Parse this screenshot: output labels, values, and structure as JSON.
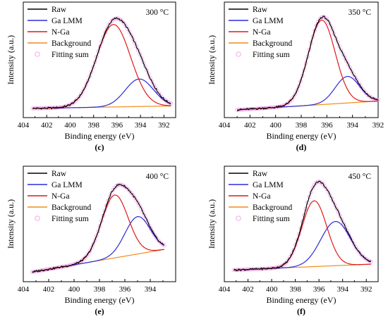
{
  "legend_items": [
    "Raw",
    "Ga LMM",
    "N-Ga",
    "Background",
    "Fitting sum"
  ],
  "series_colors": {
    "Raw": "#000000",
    "Ga LMM": "#2b2bdc",
    "N-Ga": "#e01818",
    "Background": "#f28c1a",
    "Fitting sum": "#f0a0e6"
  },
  "chart_data": [
    {
      "type": "line",
      "temperature": "300 °C",
      "panel": "(c)",
      "xlabel": "Binding energy (eV)",
      "ylabel": "Intensity (a.u.)",
      "xlim": [
        404,
        391
      ],
      "x_reversed": true,
      "ylim": [
        0,
        1
      ],
      "xticks": [
        404,
        402,
        400,
        398,
        396,
        394,
        392
      ],
      "legend": [
        "Raw",
        "Ga LMM",
        "N-Ga",
        "Background",
        "Fitting sum"
      ],
      "legend_position": "top-left",
      "x_start": 403.2,
      "x_end": 391.4,
      "background": [
        0.035,
        0.06
      ],
      "peaks": [
        {
          "name": "N-Ga",
          "center": 396.3,
          "height": 0.84,
          "width": 1.45
        },
        {
          "name": "Ga LMM",
          "center": 394.1,
          "height": 0.28,
          "width": 1.2
        }
      ],
      "series": [
        {
          "name": "Raw"
        },
        {
          "name": "Ga LMM"
        },
        {
          "name": "N-Ga"
        },
        {
          "name": "Background"
        },
        {
          "name": "Fitting sum"
        }
      ]
    },
    {
      "type": "line",
      "temperature": "350 °C",
      "panel": "(d)",
      "xlabel": "Binding energy (eV)",
      "ylabel": "Intensity (a.u.)",
      "xlim": [
        404,
        392
      ],
      "x_reversed": true,
      "ylim": [
        0,
        1
      ],
      "xticks": [
        404,
        402,
        400,
        398,
        396,
        394,
        392
      ],
      "legend": [
        "Raw",
        "Ga LMM",
        "N-Ga",
        "Background",
        "Fitting sum"
      ],
      "legend_position": "top-left",
      "x_start": 403.0,
      "x_end": 392.0,
      "background": [
        0.02,
        0.11
      ],
      "peaks": [
        {
          "name": "N-Ga",
          "center": 396.4,
          "height": 0.86,
          "width": 1.05
        },
        {
          "name": "Ga LMM",
          "center": 394.4,
          "height": 0.27,
          "width": 0.95
        }
      ],
      "series": [
        {
          "name": "Raw"
        },
        {
          "name": "Ga LMM"
        },
        {
          "name": "N-Ga"
        },
        {
          "name": "Background"
        },
        {
          "name": "Fitting sum"
        }
      ]
    },
    {
      "type": "line",
      "temperature": "400 °C",
      "panel": "(e)",
      "xlabel": "Binding energy (eV)",
      "ylabel": "Intensity (a.u.)",
      "xlim": [
        404,
        392
      ],
      "x_reversed": true,
      "ylim": [
        0,
        1
      ],
      "xticks": [
        404,
        402,
        400,
        398,
        396,
        394
      ],
      "legend": [
        "Raw",
        "Ga LMM",
        "N-Ga",
        "Background",
        "Fitting sum"
      ],
      "legend_position": "top-left",
      "x_start": 403.3,
      "x_end": 392.9,
      "background": [
        0.04,
        0.27
      ],
      "peaks": [
        {
          "name": "N-Ga",
          "center": 396.8,
          "height": 0.64,
          "width": 1.05
        },
        {
          "name": "Ga LMM",
          "center": 395.0,
          "height": 0.38,
          "width": 1.0
        }
      ],
      "series": [
        {
          "name": "Raw"
        },
        {
          "name": "Ga LMM"
        },
        {
          "name": "N-Ga"
        },
        {
          "name": "Background"
        },
        {
          "name": "Fitting sum"
        }
      ]
    },
    {
      "type": "line",
      "temperature": "450 °C",
      "panel": "(f)",
      "xlabel": "Binding energy (eV)",
      "ylabel": "Intensity (a.u.)",
      "xlim": [
        404,
        391
      ],
      "x_reversed": true,
      "ylim": [
        0,
        1
      ],
      "xticks": [
        404,
        402,
        400,
        398,
        396,
        394,
        392
      ],
      "legend": [
        "Raw",
        "Ga LMM",
        "N-Ga",
        "Background",
        "Fitting sum"
      ],
      "legend_position": "top-left",
      "x_start": 403.2,
      "x_end": 391.6,
      "background": [
        0.06,
        0.12
      ],
      "peaks": [
        {
          "name": "N-Ga",
          "center": 396.4,
          "height": 0.67,
          "width": 1.05
        },
        {
          "name": "Ga LMM",
          "center": 394.6,
          "height": 0.45,
          "width": 1.25
        }
      ],
      "series": [
        {
          "name": "Raw"
        },
        {
          "name": "Ga LMM"
        },
        {
          "name": "N-Ga"
        },
        {
          "name": "Background"
        },
        {
          "name": "Fitting sum"
        }
      ]
    }
  ]
}
